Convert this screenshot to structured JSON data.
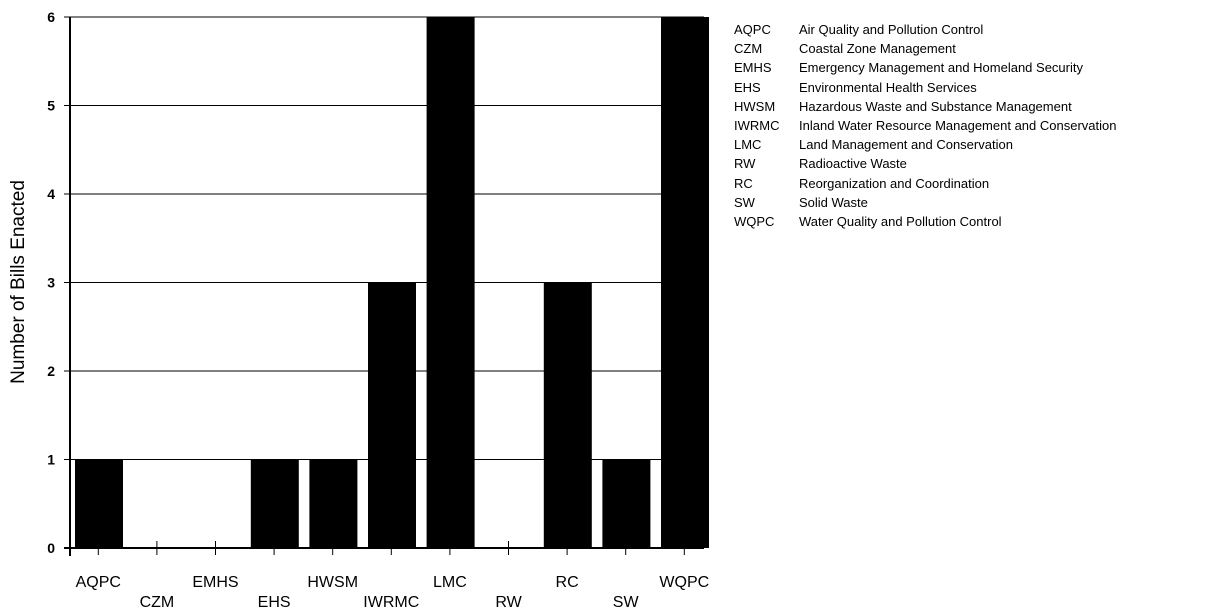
{
  "chart_data": {
    "type": "bar",
    "categories": [
      "AQPC",
      "CZM",
      "EMHS",
      "EHS",
      "HWSM",
      "IWRMC",
      "LMC",
      "RW",
      "RC",
      "SW",
      "WQPC"
    ],
    "values": [
      1,
      0,
      0,
      1,
      1,
      3,
      6,
      0,
      3,
      1,
      6
    ],
    "ylabel": "Number of Bills Enacted",
    "xlabel": "",
    "ylim": [
      0,
      6
    ],
    "yticks": [
      "0",
      "1",
      "2",
      "3",
      "4",
      "5",
      "6"
    ],
    "grid": true,
    "bar_color": "#000000",
    "legend_position": "right",
    "legend": [
      {
        "code": "AQPC",
        "name": "Air Quality and Pollution Control"
      },
      {
        "code": "CZM",
        "name": "Coastal Zone Management"
      },
      {
        "code": "EMHS",
        "name": "Emergency Management and Homeland Security"
      },
      {
        "code": "EHS",
        "name": "Environmental Health Services"
      },
      {
        "code": "HWSM",
        "name": "Hazardous Waste and Substance Management"
      },
      {
        "code": "IWRMC",
        "name": "Inland Water Resource Management and Conservation"
      },
      {
        "code": "LMC",
        "name": "Land Management and Conservation"
      },
      {
        "code": "RW",
        "name": "Radioactive Waste"
      },
      {
        "code": "RC",
        "name": "Reorganization and Coordination"
      },
      {
        "code": "SW",
        "name": "Solid Waste"
      },
      {
        "code": "WQPC",
        "name": "Water Quality and Pollution Control"
      }
    ]
  }
}
